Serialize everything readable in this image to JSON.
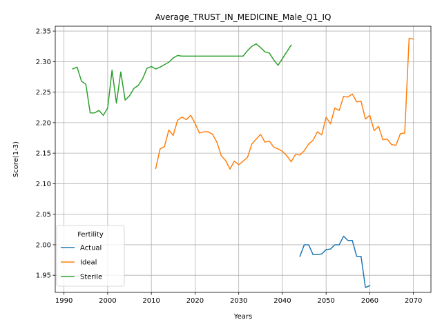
{
  "chart_data": {
    "type": "line",
    "title": "Average_TRUST_IN_MEDICINE_Male_Q1_IQ",
    "xlabel": "Years",
    "ylabel": "Score(1-3)",
    "xlim": [
      1988,
      2074
    ],
    "ylim": [
      1.922,
      2.358
    ],
    "xticks": [
      1990,
      2000,
      2010,
      2020,
      2030,
      2040,
      2050,
      2060,
      2070
    ],
    "yticks": [
      1.95,
      2.0,
      2.05,
      2.1,
      2.15,
      2.2,
      2.25,
      2.3,
      2.35
    ],
    "grid": true,
    "legend": {
      "title": "Fertility",
      "position": "lower-left"
    },
    "series": [
      {
        "name": "Actual",
        "color": "#1f77b4",
        "x": [
          2044,
          2045,
          2046,
          2047,
          2048,
          2049,
          2050,
          2051,
          2052,
          2053,
          2054,
          2055,
          2056,
          2057,
          2058,
          2059,
          2060
        ],
        "y": [
          1.981,
          2.0,
          2.0,
          1.984,
          1.984,
          1.985,
          1.992,
          1.993,
          2.0,
          2.0,
          2.014,
          2.007,
          2.007,
          1.981,
          1.981,
          1.93,
          1.933
        ]
      },
      {
        "name": "Ideal",
        "color": "#ff7f0e",
        "x": [
          2011,
          2012,
          2013,
          2014,
          2015,
          2016,
          2017,
          2018,
          2019,
          2020,
          2021,
          2022,
          2023,
          2024,
          2025,
          2026,
          2027,
          2028,
          2029,
          2030,
          2031,
          2032,
          2033,
          2034,
          2035,
          2036,
          2037,
          2038,
          2039,
          2040,
          2041,
          2042,
          2043,
          2044,
          2045,
          2046,
          2047,
          2048,
          2049,
          2050,
          2051,
          2052,
          2053,
          2054,
          2055,
          2056,
          2057,
          2058,
          2059,
          2060,
          2061,
          2062,
          2063,
          2064,
          2065,
          2066,
          2067,
          2068,
          2069,
          2070
        ],
        "y": [
          2.125,
          2.157,
          2.161,
          2.188,
          2.179,
          2.204,
          2.209,
          2.205,
          2.212,
          2.199,
          2.183,
          2.185,
          2.185,
          2.181,
          2.168,
          2.146,
          2.138,
          2.124,
          2.137,
          2.131,
          2.137,
          2.143,
          2.165,
          2.173,
          2.181,
          2.168,
          2.17,
          2.16,
          2.157,
          2.153,
          2.146,
          2.136,
          2.148,
          2.147,
          2.154,
          2.165,
          2.171,
          2.185,
          2.18,
          2.209,
          2.198,
          2.224,
          2.22,
          2.243,
          2.242,
          2.247,
          2.234,
          2.235,
          2.206,
          2.212,
          2.187,
          2.194,
          2.172,
          2.173,
          2.164,
          2.163,
          2.182,
          2.183,
          2.338,
          2.337
        ]
      },
      {
        "name": "Sterile",
        "color": "#2ca02c",
        "x": [
          1992,
          1993,
          1994,
          1995,
          1996,
          1997,
          1998,
          1999,
          2000,
          2001,
          2002,
          2003,
          2004,
          2005,
          2006,
          2007,
          2008,
          2009,
          2010,
          2011,
          2012,
          2013,
          2014,
          2015,
          2016,
          2017,
          2018,
          2019,
          2020,
          2021,
          2022,
          2023,
          2024,
          2025,
          2026,
          2027,
          2028,
          2029,
          2030,
          2031,
          2032,
          2033,
          2034,
          2035,
          2036,
          2037,
          2038,
          2039,
          2040,
          2041,
          2042
        ],
        "y": [
          2.288,
          2.291,
          2.268,
          2.263,
          2.216,
          2.216,
          2.22,
          2.212,
          2.224,
          2.286,
          2.232,
          2.283,
          2.237,
          2.244,
          2.256,
          2.261,
          2.272,
          2.289,
          2.292,
          2.288,
          2.291,
          2.295,
          2.299,
          2.306,
          2.31,
          2.309,
          2.309,
          2.309,
          2.309,
          2.309,
          2.309,
          2.309,
          2.309,
          2.309,
          2.309,
          2.309,
          2.309,
          2.309,
          2.309,
          2.309,
          2.318,
          2.325,
          2.329,
          2.323,
          2.316,
          2.314,
          2.303,
          2.294,
          2.305,
          2.316,
          2.327
        ]
      }
    ]
  }
}
